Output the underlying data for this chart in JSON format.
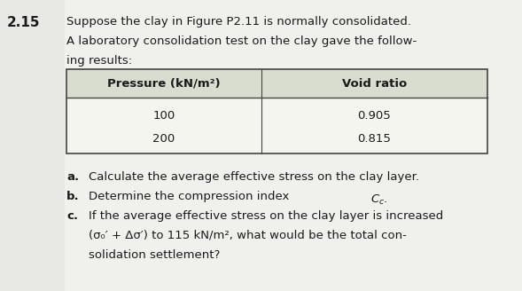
{
  "problem_number": "2.15",
  "intro_line1": "Suppose the clay in Figure P2.11 is normally consolidated.",
  "intro_line2": "A laboratory consolidation test on the clay gave the follow-",
  "intro_line3": "ing results:",
  "table_header_col1": "Pressure (kN/m²)",
  "table_header_col2": "Void ratio",
  "table_data": [
    [
      "100",
      "0.905"
    ],
    [
      "200",
      "0.815"
    ]
  ],
  "part_a_label": "a.",
  "part_a_text": "Calculate the average effective stress on the clay layer.",
  "part_b_label": "b.",
  "part_b_text_pre": "Determine the compression index ",
  "part_b_text_post": ".",
  "part_c_label": "c.",
  "part_c_line1": "If the average effective stress on the clay layer is increased",
  "part_c_line2": "(σ₀′ + Δσ′) to 115 kN/m², what would be the total con-",
  "part_c_line3": "solidation settlement?",
  "bg_color": "#e8e8e4",
  "table_bg_white": "#f5f5f0",
  "table_header_bg": "#d8ddd0",
  "text_color": "#1a1a1a",
  "border_color": "#444444",
  "page_white": "#f0f0ec",
  "fig_width": 5.89,
  "fig_height": 3.28,
  "dpi": 100
}
